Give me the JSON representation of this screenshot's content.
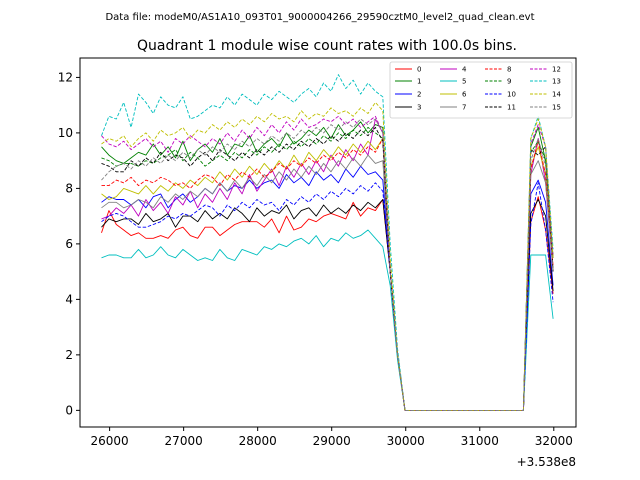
{
  "suptitle": "Data file: modeM0/AS1A10_093T01_9000004266_29590cztM0_level2_quad_clean.evt",
  "chart_data": {
    "type": "line",
    "title": "Quadrant 1 module wise count rates with 100.0s bins.",
    "xlabel": "",
    "ylabel": "",
    "x_offset_label": "+3.538e8",
    "xlim": [
      25600,
      32300
    ],
    "ylim": [
      -0.6,
      12.7
    ],
    "x_ticks": [
      26000,
      27000,
      28000,
      29000,
      30000,
      31000,
      32000
    ],
    "x_tick_labels": [
      "26000",
      "27000",
      "28000",
      "29000",
      "30000",
      "31000",
      "32000"
    ],
    "y_ticks": [
      0,
      2,
      4,
      6,
      8,
      10,
      12
    ],
    "y_tick_labels": [
      "0",
      "2",
      "4",
      "6",
      "8",
      "10",
      "12"
    ],
    "grid": false,
    "legend_position": "top-right",
    "x": [
      25890,
      25990,
      26090,
      26190,
      26290,
      26390,
      26490,
      26590,
      26690,
      26790,
      26890,
      26990,
      27090,
      27190,
      27290,
      27390,
      27490,
      27590,
      27690,
      27790,
      27890,
      27990,
      28090,
      28190,
      28290,
      28390,
      28490,
      28590,
      28690,
      28790,
      28890,
      28990,
      29090,
      29190,
      29290,
      29390,
      29490,
      29590,
      29690,
      29790,
      29890,
      29990,
      30090,
      30190,
      30290,
      30390,
      30490,
      30590,
      30690,
      30790,
      30890,
      30990,
      31090,
      31190,
      31290,
      31390,
      31490,
      31590,
      31690,
      31790,
      31890,
      31990
    ],
    "series": [
      {
        "name": "0",
        "color": "#ff0000",
        "dash": false,
        "values": [
          6.4,
          7.2,
          6.7,
          6.5,
          6.3,
          6.4,
          6.2,
          6.2,
          6.3,
          6.2,
          6.5,
          6.6,
          6.3,
          6.2,
          6.6,
          6.6,
          6.3,
          6.5,
          6.7,
          6.8,
          6.8,
          6.8,
          6.6,
          6.9,
          6.4,
          7.0,
          6.5,
          6.6,
          6.9,
          6.8,
          7.0,
          7.1,
          7.0,
          6.9,
          7.5,
          7.0,
          7.3,
          7.2,
          7.6,
          5.0,
          2.0,
          0,
          0,
          0,
          0,
          0,
          0,
          0,
          0,
          0,
          0,
          0,
          0,
          0,
          0,
          0,
          0,
          0,
          6.8,
          7.7,
          6.5,
          4.2
        ]
      },
      {
        "name": "1",
        "color": "#008000",
        "dash": false,
        "values": [
          9.5,
          9.2,
          9.0,
          8.9,
          9.1,
          9.3,
          9.2,
          9.6,
          9.2,
          9.5,
          9.1,
          9.7,
          9.0,
          9.4,
          9.6,
          9.3,
          9.8,
          9.2,
          9.6,
          9.5,
          9.9,
          9.3,
          9.6,
          9.8,
          9.5,
          10.0,
          9.6,
          9.8,
          10.1,
          9.9,
          10.2,
          9.8,
          10.3,
          9.9,
          10.1,
          10.4,
          10.0,
          10.3,
          10.2,
          5.0,
          2.0,
          0,
          0,
          0,
          0,
          0,
          0,
          0,
          0,
          0,
          0,
          0,
          0,
          0,
          0,
          0,
          0,
          0,
          9.5,
          10.2,
          9.0,
          5.5
        ]
      },
      {
        "name": "2",
        "color": "#0000ff",
        "dash": false,
        "values": [
          7.5,
          7.7,
          7.6,
          7.6,
          7.4,
          7.6,
          7.3,
          7.7,
          7.8,
          7.3,
          7.6,
          7.8,
          7.5,
          7.7,
          8.0,
          7.8,
          8.2,
          7.9,
          8.1,
          8.0,
          8.3,
          8.0,
          8.2,
          8.3,
          8.0,
          8.5,
          8.2,
          8.4,
          8.1,
          8.6,
          8.3,
          8.5,
          8.2,
          8.7,
          8.4,
          8.8,
          8.5,
          8.6,
          8.3,
          5.0,
          2.0,
          0,
          0,
          0,
          0,
          0,
          0,
          0,
          0,
          0,
          0,
          0,
          0,
          0,
          0,
          0,
          0,
          0,
          7.8,
          8.3,
          7.5,
          4.5
        ]
      },
      {
        "name": "3",
        "color": "#000000",
        "dash": false,
        "values": [
          6.6,
          6.9,
          6.8,
          6.9,
          6.9,
          6.7,
          7.1,
          6.8,
          6.9,
          7.1,
          6.6,
          7.0,
          7.0,
          6.8,
          7.2,
          6.9,
          7.1,
          6.9,
          7.3,
          7.1,
          6.8,
          7.3,
          7.0,
          7.2,
          7.1,
          7.4,
          6.9,
          7.2,
          7.3,
          7.0,
          7.4,
          7.1,
          7.3,
          7.1,
          7.4,
          7.2,
          7.5,
          7.3,
          7.6,
          5.0,
          2.0,
          0,
          0,
          0,
          0,
          0,
          0,
          0,
          0,
          0,
          0,
          0,
          0,
          0,
          0,
          0,
          0,
          0,
          7.1,
          7.6,
          7.0,
          4.3
        ]
      },
      {
        "name": "4",
        "color": "#bf00bf",
        "dash": false,
        "values": [
          6.9,
          7.0,
          7.3,
          7.1,
          7.4,
          7.0,
          7.6,
          7.2,
          7.5,
          7.1,
          7.7,
          7.4,
          7.9,
          7.3,
          7.8,
          7.5,
          8.0,
          7.6,
          8.2,
          7.8,
          8.5,
          7.9,
          8.3,
          8.7,
          8.1,
          8.8,
          8.4,
          8.9,
          8.5,
          9.0,
          8.6,
          9.2,
          8.8,
          9.4,
          9.0,
          9.6,
          9.2,
          10.5,
          10.0,
          5.0,
          2.0,
          0,
          0,
          0,
          0,
          0,
          0,
          0,
          0,
          0,
          0,
          0,
          0,
          0,
          0,
          0,
          0,
          0,
          8.5,
          9.8,
          8.2,
          5.0
        ]
      },
      {
        "name": "5",
        "color": "#00bfbf",
        "dash": false,
        "values": [
          5.5,
          5.6,
          5.6,
          5.5,
          5.5,
          5.8,
          5.5,
          5.6,
          5.9,
          5.6,
          5.5,
          5.8,
          5.6,
          5.4,
          5.5,
          5.4,
          5.8,
          5.5,
          5.4,
          5.8,
          5.7,
          5.6,
          5.9,
          5.8,
          6.0,
          5.9,
          6.1,
          6.2,
          6.0,
          6.3,
          5.9,
          6.2,
          6.1,
          6.4,
          6.2,
          6.3,
          6.5,
          6.2,
          5.9,
          4.5,
          1.8,
          0,
          0,
          0,
          0,
          0,
          0,
          0,
          0,
          0,
          0,
          0,
          0,
          0,
          0,
          0,
          0,
          0,
          5.6,
          5.6,
          5.6,
          3.3
        ]
      },
      {
        "name": "6",
        "color": "#bfbf00",
        "dash": false,
        "values": [
          7.8,
          7.6,
          7.7,
          8.0,
          7.9,
          7.8,
          8.1,
          7.8,
          8.1,
          7.9,
          8.2,
          8.0,
          8.3,
          8.1,
          8.4,
          8.2,
          8.6,
          8.3,
          8.7,
          8.4,
          8.8,
          8.5,
          8.9,
          8.6,
          9.0,
          8.7,
          9.2,
          8.8,
          9.3,
          9.0,
          9.4,
          9.1,
          9.5,
          9.2,
          9.6,
          9.3,
          9.7,
          9.4,
          9.8,
          5.0,
          2.0,
          0,
          0,
          0,
          0,
          0,
          0,
          0,
          0,
          0,
          0,
          0,
          0,
          0,
          0,
          0,
          0,
          0,
          8.8,
          9.5,
          8.5,
          5.0
        ]
      },
      {
        "name": "7",
        "color": "#808080",
        "dash": false,
        "values": [
          7.3,
          7.5,
          7.5,
          7.3,
          7.4,
          7.6,
          7.5,
          7.3,
          7.7,
          7.5,
          7.8,
          7.6,
          7.9,
          7.7,
          8.0,
          7.8,
          8.2,
          7.9,
          8.3,
          8.0,
          8.4,
          8.1,
          8.5,
          8.2,
          8.6,
          8.3,
          8.7,
          8.4,
          8.8,
          8.5,
          8.9,
          8.6,
          9.0,
          8.7,
          9.1,
          8.8,
          9.2,
          8.9,
          9.0,
          5.0,
          2.0,
          0,
          0,
          0,
          0,
          0,
          0,
          0,
          0,
          0,
          0,
          0,
          0,
          0,
          0,
          0,
          0,
          0,
          8.5,
          9.0,
          8.2,
          5.0
        ]
      },
      {
        "name": "8",
        "color": "#ff0000",
        "dash": true,
        "values": [
          8.1,
          8.1,
          8.3,
          8.2,
          8.4,
          8.1,
          8.3,
          8.2,
          8.4,
          8.3,
          8.1,
          8.2,
          8.0,
          8.3,
          8.5,
          8.4,
          8.1,
          8.5,
          8.3,
          8.6,
          8.4,
          8.7,
          8.4,
          8.6,
          8.9,
          8.7,
          9.0,
          8.8,
          9.1,
          8.9,
          9.2,
          9.0,
          9.3,
          9.1,
          9.4,
          9.2,
          9.5,
          9.3,
          9.8,
          5.0,
          2.0,
          0,
          0,
          0,
          0,
          0,
          0,
          0,
          0,
          0,
          0,
          0,
          0,
          0,
          0,
          0,
          0,
          0,
          8.7,
          9.7,
          8.5,
          5.2
        ]
      },
      {
        "name": "9",
        "color": "#008000",
        "dash": true,
        "values": [
          9.1,
          9.0,
          8.8,
          8.9,
          8.9,
          8.8,
          9.0,
          8.9,
          9.1,
          9.2,
          9.4,
          9.0,
          9.3,
          9.1,
          8.8,
          9.0,
          9.2,
          9.0,
          9.3,
          9.1,
          9.4,
          9.2,
          9.5,
          9.3,
          9.6,
          9.4,
          9.7,
          9.5,
          9.8,
          9.6,
          9.9,
          9.7,
          10.0,
          9.8,
          10.1,
          9.9,
          10.2,
          10.0,
          9.8,
          5.0,
          2.0,
          0,
          0,
          0,
          0,
          0,
          0,
          0,
          0,
          0,
          0,
          0,
          0,
          0,
          0,
          0,
          0,
          0,
          9.3,
          9.7,
          9.0,
          5.5
        ]
      },
      {
        "name": "10",
        "color": "#0000ff",
        "dash": true,
        "values": [
          6.8,
          7.0,
          7.1,
          7.0,
          6.8,
          6.6,
          6.6,
          6.7,
          6.8,
          7.0,
          6.9,
          7.1,
          7.0,
          7.2,
          7.4,
          7.3,
          7.0,
          7.4,
          7.2,
          7.5,
          7.3,
          7.6,
          7.4,
          7.5,
          7.2,
          7.6,
          7.4,
          7.7,
          7.5,
          7.8,
          7.6,
          7.9,
          7.7,
          8.0,
          7.8,
          8.1,
          7.9,
          8.2,
          7.9,
          5.0,
          2.0,
          0,
          0,
          0,
          0,
          0,
          0,
          0,
          0,
          0,
          0,
          0,
          0,
          0,
          0,
          0,
          0,
          0,
          6.7,
          8.2,
          6.5,
          3.9
        ]
      },
      {
        "name": "11",
        "color": "#000000",
        "dash": true,
        "values": [
          8.9,
          8.8,
          8.6,
          8.6,
          9.0,
          8.8,
          9.1,
          8.9,
          9.3,
          9.0,
          9.2,
          9.1,
          8.8,
          9.1,
          9.3,
          9.0,
          9.4,
          9.2,
          9.0,
          9.3,
          9.1,
          9.4,
          9.2,
          9.5,
          9.3,
          9.6,
          9.4,
          9.7,
          9.5,
          9.8,
          9.6,
          9.9,
          9.7,
          10.0,
          9.8,
          10.1,
          9.9,
          10.2,
          9.7,
          5.0,
          2.0,
          0,
          0,
          0,
          0,
          0,
          0,
          0,
          0,
          0,
          0,
          0,
          0,
          0,
          0,
          0,
          0,
          0,
          9.4,
          9.2,
          9.5,
          5.0
        ]
      },
      {
        "name": "12",
        "color": "#bf00bf",
        "dash": true,
        "values": [
          9.9,
          9.6,
          9.5,
          9.7,
          9.4,
          9.6,
          9.8,
          9.5,
          9.7,
          9.3,
          9.8,
          9.6,
          9.9,
          9.7,
          9.5,
          9.8,
          9.6,
          10.0,
          9.7,
          10.1,
          9.8,
          10.2,
          9.9,
          10.3,
          10.0,
          10.4,
          10.1,
          10.5,
          10.2,
          10.3,
          10.5,
          10.4,
          10.6,
          10.3,
          10.5,
          10.2,
          10.4,
          10.6,
          10.0,
          5.0,
          2.0,
          0,
          0,
          0,
          0,
          0,
          0,
          0,
          0,
          0,
          0,
          0,
          0,
          0,
          0,
          0,
          0,
          0,
          9.6,
          10.3,
          9.5,
          5.5
        ]
      },
      {
        "name": "13",
        "color": "#00bfbf",
        "dash": true,
        "values": [
          9.9,
          10.6,
          10.5,
          11.1,
          10.2,
          11.4,
          11.1,
          10.7,
          11.3,
          11.0,
          10.9,
          11.3,
          10.5,
          10.6,
          10.8,
          11.0,
          10.9,
          11.3,
          11.0,
          11.4,
          11.2,
          11.0,
          11.4,
          11.2,
          11.5,
          11.3,
          11.1,
          11.4,
          11.6,
          11.3,
          11.8,
          11.5,
          12.1,
          11.6,
          11.9,
          11.4,
          11.8,
          11.5,
          11.3,
          6.0,
          2.2,
          0,
          0,
          0,
          0,
          0,
          0,
          0,
          0,
          0,
          0,
          0,
          0,
          0,
          0,
          0,
          0,
          0,
          9.8,
          10.6,
          9.5,
          5.8
        ]
      },
      {
        "name": "14",
        "color": "#bfbf00",
        "dash": true,
        "values": [
          9.6,
          9.8,
          9.7,
          9.9,
          9.5,
          9.8,
          10.0,
          9.7,
          10.1,
          9.9,
          10.0,
          10.2,
          9.8,
          10.1,
          10.0,
          10.3,
          10.1,
          10.4,
          10.2,
          10.5,
          10.3,
          10.6,
          10.4,
          10.7,
          10.5,
          10.6,
          10.4,
          10.8,
          10.5,
          10.7,
          10.6,
          10.9,
          10.7,
          10.8,
          10.6,
          10.9,
          10.7,
          11.1,
          10.8,
          5.5,
          2.0,
          0,
          0,
          0,
          0,
          0,
          0,
          0,
          0,
          0,
          0,
          0,
          0,
          0,
          0,
          0,
          0,
          0,
          9.8,
          10.5,
          9.5,
          5.5
        ]
      },
      {
        "name": "15",
        "color": "#808080",
        "dash": true,
        "values": [
          8.3,
          8.6,
          8.8,
          8.9,
          8.7,
          9.0,
          8.8,
          9.1,
          8.9,
          9.2,
          9.0,
          9.3,
          9.1,
          9.4,
          9.2,
          9.5,
          9.3,
          9.6,
          9.4,
          9.7,
          9.5,
          9.8,
          9.6,
          9.9,
          9.7,
          10.0,
          9.8,
          10.1,
          9.9,
          10.2,
          10.0,
          10.3,
          10.1,
          10.4,
          10.2,
          10.5,
          10.3,
          10.5,
          10.0,
          5.0,
          2.0,
          0,
          0,
          0,
          0,
          0,
          0,
          0,
          0,
          0,
          0,
          0,
          0,
          0,
          0,
          0,
          0,
          0,
          9.0,
          9.8,
          8.8,
          5.0
        ]
      }
    ]
  }
}
